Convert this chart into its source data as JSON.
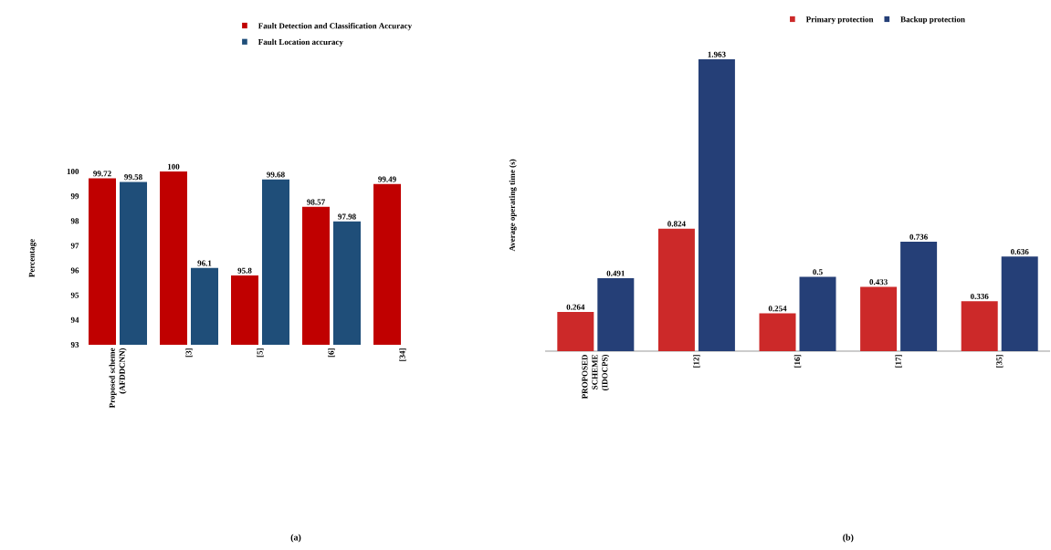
{
  "chart_data": [
    {
      "type": "bar",
      "ylabel": "Percentage",
      "categories": [
        "Proposed scheme (AFDDCNN)",
        "[3]",
        "[5]",
        "[6]",
        "[34]"
      ],
      "ylim": [
        93,
        100
      ],
      "yticks": [
        93,
        94,
        95,
        96,
        97,
        98,
        99,
        100
      ],
      "legend": "top",
      "data_labels": true,
      "annotations": [
        "(a)"
      ],
      "series": [
        {
          "name": "Fault Detection and Classification Accuracy",
          "color": "#c00000",
          "values": [
            99.72,
            100,
            95.8,
            98.57,
            99.49
          ]
        },
        {
          "name": "Fault Location accuracy",
          "color": "#1f4e79",
          "values": [
            99.58,
            96.1,
            99.68,
            97.98,
            null
          ]
        }
      ]
    },
    {
      "type": "bar",
      "ylabel": "Average operating time (s)",
      "categories": [
        "PROPOSED SCHEME (IDOCPS)",
        "[12]",
        "[16]",
        "[17]",
        "[35]"
      ],
      "legend": "top",
      "data_labels": true,
      "annotations": [
        "(b)"
      ],
      "series": [
        {
          "name": "Primary protection",
          "color": "#cc2929",
          "values": [
            0.264,
            0.824,
            0.254,
            0.433,
            0.336
          ]
        },
        {
          "name": "Backup protection",
          "color": "#253f77",
          "values": [
            0.491,
            1.963,
            0.5,
            0.736,
            0.636
          ]
        }
      ]
    }
  ]
}
